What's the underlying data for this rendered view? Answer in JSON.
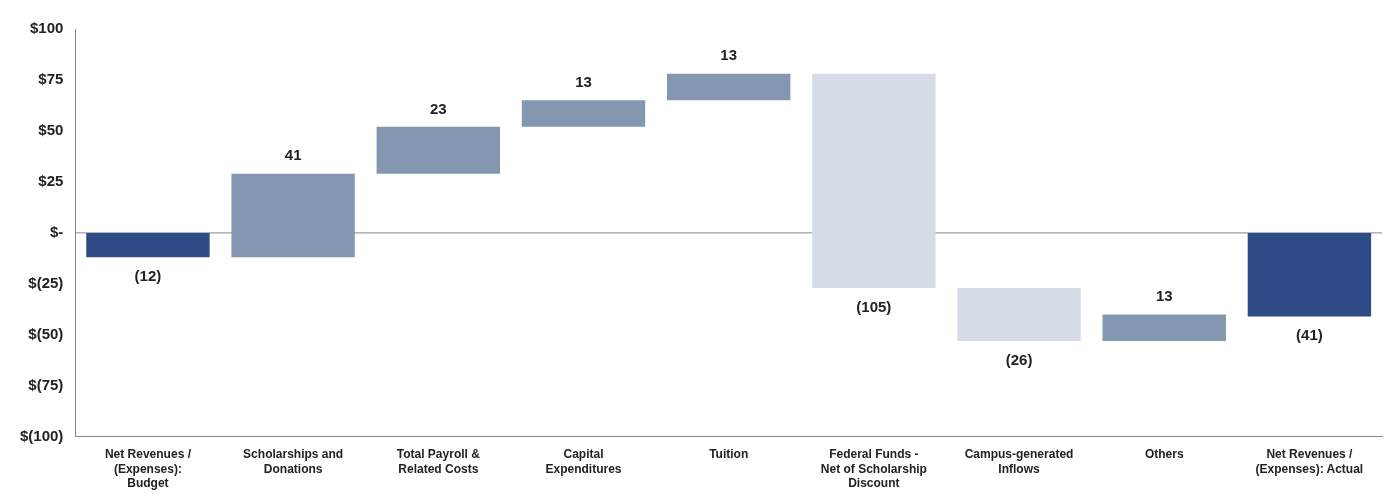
{
  "chart_data": {
    "type": "bar",
    "categories": [
      "Net Revenues / (Expenses): Budget",
      "Scholarships and Donations",
      "Total Payroll & Related Costs",
      "Capital Expenditures",
      "Tuition",
      "Federal Funds - Net of Scholarship Discount",
      "Campus-generated Inflows",
      "Others",
      "Net Revenues / (Expenses): Actual"
    ],
    "values": [
      -12,
      41,
      23,
      13,
      13,
      -105,
      -26,
      13,
      -41
    ],
    "base": [
      0,
      -12,
      29,
      52,
      65,
      78,
      -27,
      -53,
      0
    ],
    "colors": [
      "#2f4b86",
      "#8497b0",
      "#8497b0",
      "#8497b0",
      "#8497b0",
      "#d6dce5",
      "#d6dce5",
      "#8497b0",
      "#2f4b86"
    ],
    "value_labels": [
      "(12)",
      "41",
      "23",
      "13",
      "13",
      "(105)",
      "(26)",
      "13",
      "(41)"
    ],
    "ylim": [
      -100,
      100
    ],
    "yticks": [
      {
        "value": -100,
        "label": "$(100)"
      },
      {
        "value": -75,
        "label": "$(75)"
      },
      {
        "value": -50,
        "label": "$(50)"
      },
      {
        "value": -25,
        "label": "$(25)"
      },
      {
        "value": 0,
        "label": "$-"
      },
      {
        "value": 25,
        "label": "$25"
      },
      {
        "value": 50,
        "label": "$50"
      },
      {
        "value": 75,
        "label": "$75"
      },
      {
        "value": 100,
        "label": "$100"
      }
    ],
    "ref_lines": [
      {
        "axis": "y",
        "value": 0,
        "color": "#888888"
      }
    ],
    "grid": false,
    "legend": false
  }
}
